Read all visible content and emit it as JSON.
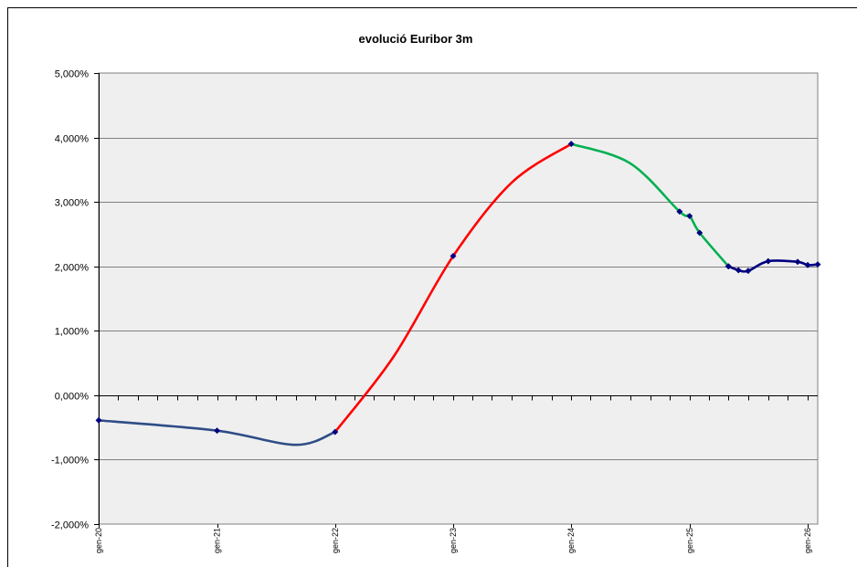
{
  "chart_data": {
    "type": "line",
    "title": "evolució Euribor 3m",
    "xlabel": "",
    "ylabel": "",
    "ylim": [
      -2,
      5
    ],
    "yticks": [
      {
        "value": 5,
        "label": "5,000%"
      },
      {
        "value": 4,
        "label": "4,000%"
      },
      {
        "value": 3,
        "label": "3,000%"
      },
      {
        "value": 2,
        "label": "2,000%"
      },
      {
        "value": 1,
        "label": "1,000%"
      },
      {
        "value": 0,
        "label": "0,000%"
      },
      {
        "value": -1,
        "label": "-1,000%"
      },
      {
        "value": -2,
        "label": "-2,000%"
      }
    ],
    "xticks": [
      {
        "x": "2020-01-01",
        "label": "gen-20"
      },
      {
        "x": "2021-01-01",
        "label": "gen-21"
      },
      {
        "x": "2022-01-01",
        "label": "gen-22"
      },
      {
        "x": "2023-01-01",
        "label": "gen-23"
      },
      {
        "x": "2024-01-01",
        "label": "gen-24"
      },
      {
        "x": "2025-01-01",
        "label": "gen-25"
      },
      {
        "x": "2026-01-01",
        "label": "gen-26"
      }
    ],
    "xlim": [
      "2020-01-01",
      "2026-02-01"
    ],
    "grid": true,
    "series": [
      {
        "color": "#2e4d86",
        "x": [
          "2020-01-01",
          "2021-01-01",
          "2021-09-01",
          "2022-01-01"
        ],
        "values": [
          -0.39,
          -0.55,
          -0.77,
          -0.57
        ],
        "markers": [
          true,
          true,
          false,
          true
        ]
      },
      {
        "color": "#ff0000",
        "x": [
          "2022-01-01",
          "2022-07-01",
          "2023-01-01",
          "2023-07-01",
          "2024-01-01"
        ],
        "values": [
          -0.57,
          0.6,
          2.16,
          3.3,
          3.9
        ],
        "markers": [
          false,
          false,
          true,
          false,
          true
        ]
      },
      {
        "color": "#00b050",
        "x": [
          "2024-01-01",
          "2024-07-01",
          "2024-12-01",
          "2025-01-01",
          "2025-02-01",
          "2025-05-01"
        ],
        "values": [
          3.9,
          3.6,
          2.85,
          2.78,
          2.52,
          2.0
        ],
        "markers": [
          false,
          false,
          true,
          true,
          true,
          true
        ]
      },
      {
        "color": "#000080",
        "x": [
          "2025-05-01",
          "2025-06-01",
          "2025-07-01",
          "2025-09-01",
          "2025-12-01",
          "2026-01-01",
          "2026-02-01"
        ],
        "values": [
          2.0,
          1.94,
          1.93,
          2.08,
          2.07,
          2.02,
          2.03
        ],
        "markers": [
          true,
          true,
          true,
          true,
          true,
          true,
          true
        ]
      }
    ]
  }
}
